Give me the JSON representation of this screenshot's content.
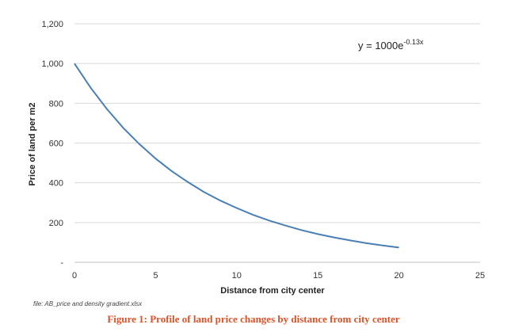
{
  "chart_data": {
    "type": "line",
    "title": "",
    "xlabel": "Distance from city center",
    "ylabel": "Price of land per m2",
    "xlim": [
      0,
      25
    ],
    "ylim": [
      0,
      1200
    ],
    "x_ticks": [
      "0",
      "5",
      "10",
      "15",
      "20",
      "25"
    ],
    "y_ticks": [
      "-",
      "200",
      "400",
      "600",
      "800",
      "1,000",
      "1,200"
    ],
    "grid": "horizontal",
    "annotation": {
      "equation_base": "y = 1000e",
      "equation_exponent": "-0.13x"
    },
    "series": [
      {
        "color": "#4a7fb5",
        "x": [
          0,
          1,
          2,
          3,
          4,
          5,
          6,
          7,
          8,
          9,
          10,
          11,
          12,
          13,
          14,
          15,
          16,
          17,
          18,
          19,
          20
        ],
        "y": [
          1000,
          878,
          771,
          677,
          595,
          522,
          458,
          403,
          353,
          310,
          273,
          239,
          210,
          185,
          162,
          142,
          125,
          110,
          96,
          85,
          74
        ]
      }
    ]
  },
  "file_note": "file: AB_price and density gradient.xlsx",
  "caption": "Figure 1: Profile of land price changes by distance from city center"
}
